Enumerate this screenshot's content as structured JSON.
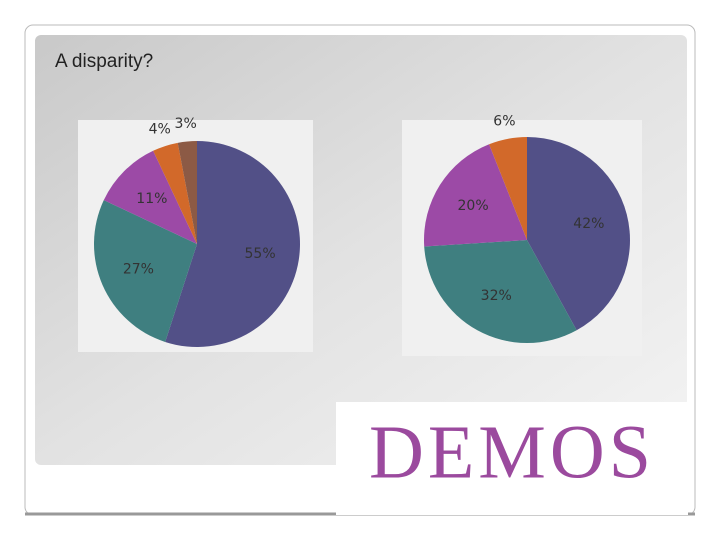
{
  "slide": {
    "title": "A disparity?"
  },
  "logo": {
    "text": "DEMOS"
  },
  "chart_data": [
    {
      "type": "pie",
      "values": [
        55,
        27,
        11,
        4,
        3
      ],
      "value_labels": [
        "55%",
        "27%",
        "11%",
        "4%",
        "3%"
      ],
      "colors": [
        "#525087",
        "#3f7f80",
        "#9c4aa6",
        "#d2692a",
        "#8c5a45"
      ]
    },
    {
      "type": "pie",
      "values": [
        42,
        32,
        20,
        6
      ],
      "value_labels": [
        "42%",
        "32%",
        "20%",
        "6%"
      ],
      "colors": [
        "#525087",
        "#3f7f80",
        "#9c4aa6",
        "#d2692a"
      ]
    }
  ]
}
